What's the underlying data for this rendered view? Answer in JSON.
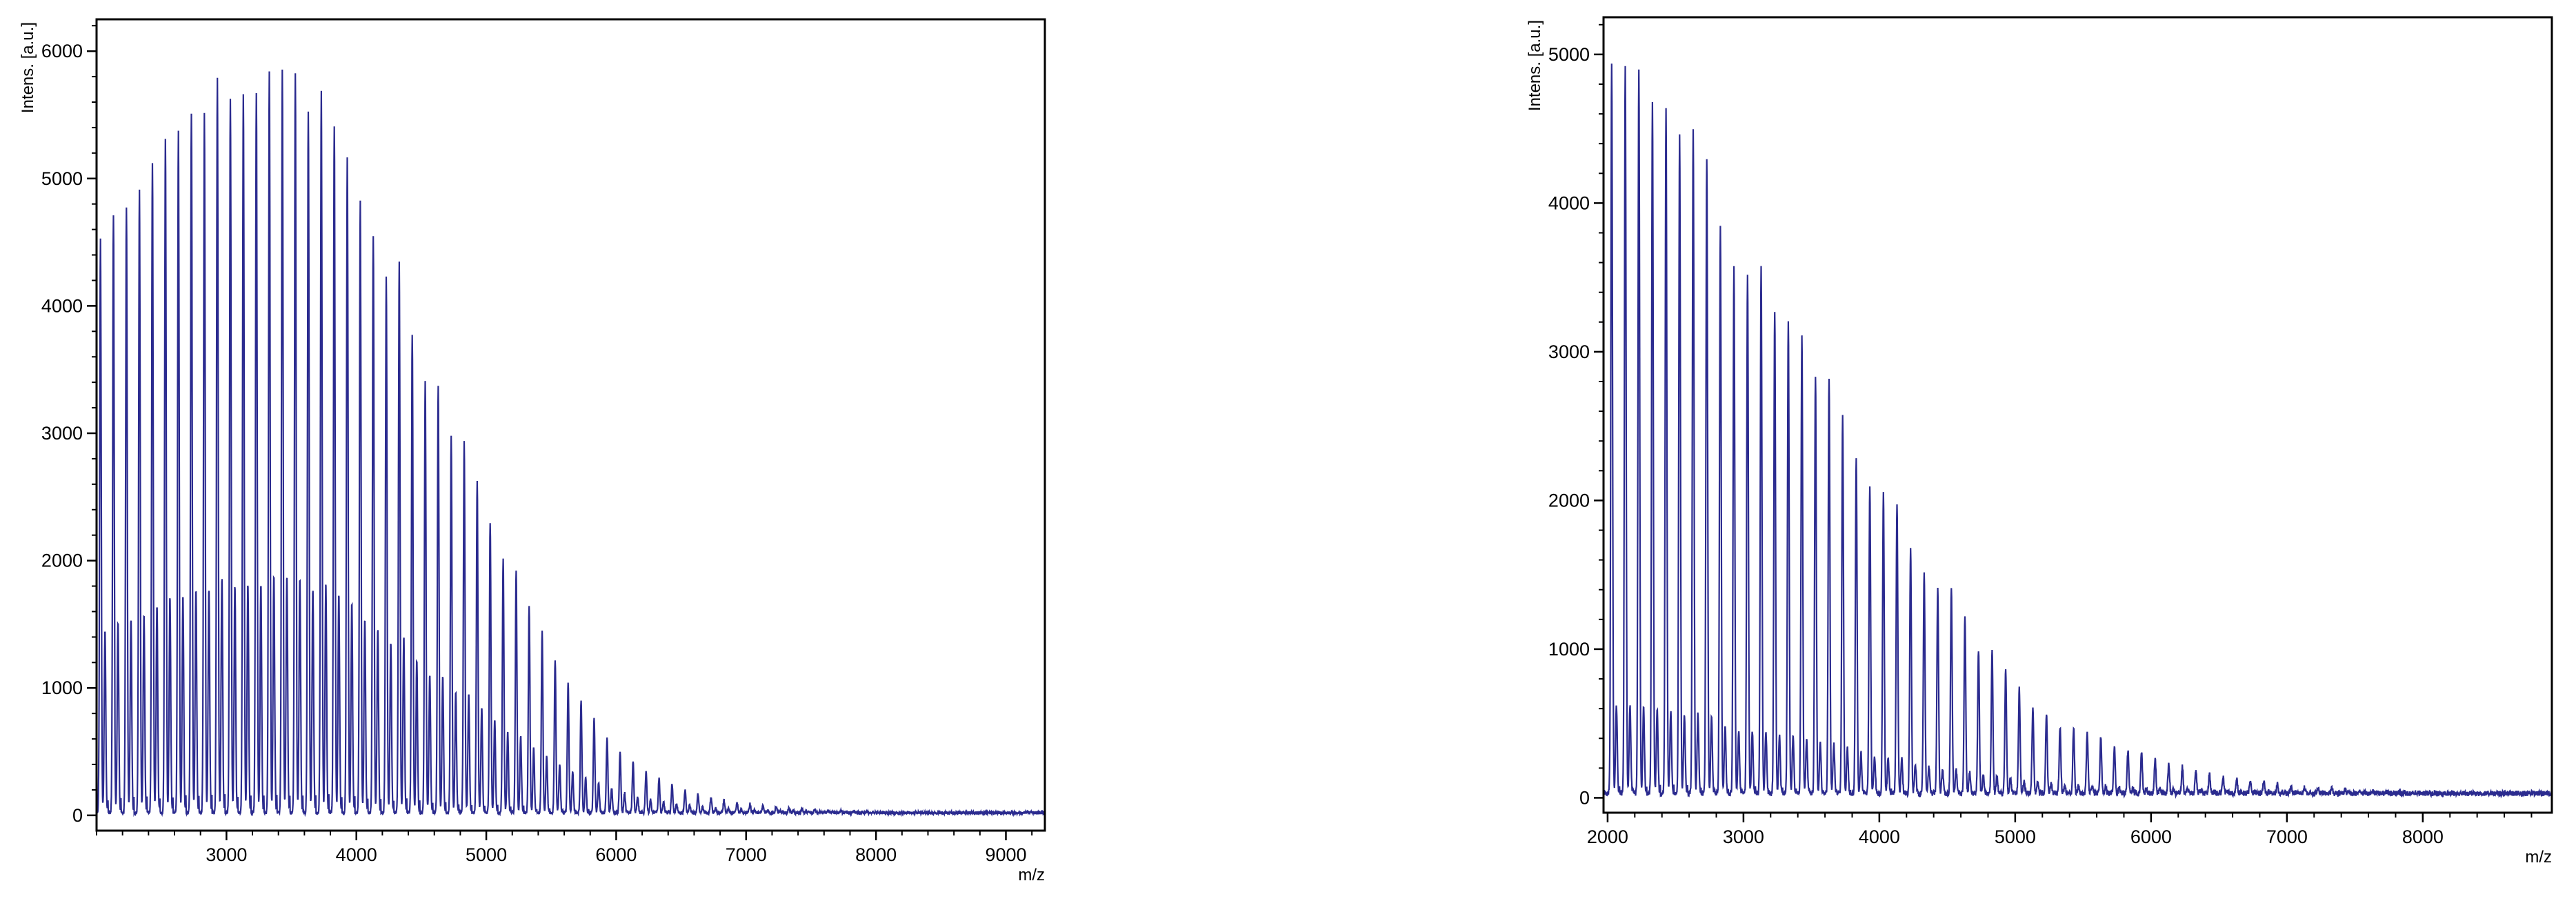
{
  "colors": {
    "trace": "#2b2b8f",
    "frame": "#000000",
    "background": "#ffffff"
  },
  "chart_data": [
    {
      "type": "line",
      "ylabel": "Intens. [a.u.]",
      "xlabel": "m/z",
      "xlim": [
        2000,
        9300
      ],
      "ylim": [
        -120,
        6250
      ],
      "xticks": [
        3000,
        4000,
        5000,
        6000,
        7000,
        8000,
        9000
      ],
      "yticks": [
        0,
        1000,
        2000,
        3000,
        4000,
        5000,
        6000
      ],
      "grid": false,
      "series": [
        {
          "peak_spacing": 100,
          "first_peak": 2030,
          "peaks": [
            {
              "x": 2030,
              "y": 4500
            },
            {
              "x": 2130,
              "y": 4700
            },
            {
              "x": 2230,
              "y": 4750
            },
            {
              "x": 2330,
              "y": 4900
            },
            {
              "x": 2430,
              "y": 5100
            },
            {
              "x": 2530,
              "y": 5300
            },
            {
              "x": 2630,
              "y": 5350
            },
            {
              "x": 2730,
              "y": 5500
            },
            {
              "x": 2830,
              "y": 5500
            },
            {
              "x": 2930,
              "y": 5780
            },
            {
              "x": 3030,
              "y": 5600
            },
            {
              "x": 3130,
              "y": 5650
            },
            {
              "x": 3230,
              "y": 5650
            },
            {
              "x": 3330,
              "y": 5830
            },
            {
              "x": 3430,
              "y": 5840
            },
            {
              "x": 3530,
              "y": 5800
            },
            {
              "x": 3630,
              "y": 5500
            },
            {
              "x": 3730,
              "y": 5660
            },
            {
              "x": 3830,
              "y": 5400
            },
            {
              "x": 3930,
              "y": 5150
            },
            {
              "x": 4030,
              "y": 4800
            },
            {
              "x": 4130,
              "y": 4520
            },
            {
              "x": 4230,
              "y": 4200
            },
            {
              "x": 4330,
              "y": 4330
            },
            {
              "x": 4430,
              "y": 3750
            },
            {
              "x": 4530,
              "y": 3400
            },
            {
              "x": 4630,
              "y": 3350
            },
            {
              "x": 4730,
              "y": 2950
            },
            {
              "x": 4830,
              "y": 2920
            },
            {
              "x": 4930,
              "y": 2600
            },
            {
              "x": 5030,
              "y": 2280
            },
            {
              "x": 5130,
              "y": 2000
            },
            {
              "x": 5230,
              "y": 1890
            },
            {
              "x": 5330,
              "y": 1620
            },
            {
              "x": 5430,
              "y": 1420
            },
            {
              "x": 5530,
              "y": 1200
            },
            {
              "x": 5630,
              "y": 1020
            },
            {
              "x": 5730,
              "y": 880
            },
            {
              "x": 5830,
              "y": 750
            },
            {
              "x": 5930,
              "y": 600
            },
            {
              "x": 6030,
              "y": 480
            },
            {
              "x": 6130,
              "y": 400
            },
            {
              "x": 6230,
              "y": 320
            },
            {
              "x": 6330,
              "y": 270
            },
            {
              "x": 6430,
              "y": 220
            },
            {
              "x": 6530,
              "y": 180
            },
            {
              "x": 6630,
              "y": 150
            },
            {
              "x": 6730,
              "y": 120
            },
            {
              "x": 6830,
              "y": 100
            },
            {
              "x": 6930,
              "y": 80
            },
            {
              "x": 7030,
              "y": 70
            },
            {
              "x": 7130,
              "y": 60
            },
            {
              "x": 7230,
              "y": 50
            },
            {
              "x": 7330,
              "y": 40
            },
            {
              "x": 7430,
              "y": 30
            },
            {
              "x": 7530,
              "y": 25
            },
            {
              "x": 7630,
              "y": 20
            },
            {
              "x": 7730,
              "y": 15
            },
            {
              "x": 7830,
              "y": 12
            },
            {
              "x": 7930,
              "y": 10
            }
          ],
          "satellite_fraction": 0.32,
          "baseline": 20
        }
      ]
    },
    {
      "type": "line",
      "ylabel": "Intens. [a.u.]",
      "xlabel": "m/z",
      "xlim": [
        1970,
        8950
      ],
      "ylim": [
        -100,
        5250
      ],
      "xticks": [
        2000,
        3000,
        4000,
        5000,
        6000,
        7000,
        8000
      ],
      "yticks": [
        0,
        1000,
        2000,
        3000,
        4000,
        5000
      ],
      "grid": false,
      "series": [
        {
          "peak_spacing": 100,
          "first_peak": 2030,
          "peaks": [
            {
              "x": 2030,
              "y": 4920
            },
            {
              "x": 2130,
              "y": 4900
            },
            {
              "x": 2230,
              "y": 4880
            },
            {
              "x": 2330,
              "y": 4650
            },
            {
              "x": 2430,
              "y": 4600
            },
            {
              "x": 2530,
              "y": 4430
            },
            {
              "x": 2630,
              "y": 4450
            },
            {
              "x": 2730,
              "y": 4280
            },
            {
              "x": 2830,
              "y": 3800
            },
            {
              "x": 2930,
              "y": 3530
            },
            {
              "x": 3030,
              "y": 3500
            },
            {
              "x": 3130,
              "y": 3540
            },
            {
              "x": 3230,
              "y": 3250
            },
            {
              "x": 3330,
              "y": 3170
            },
            {
              "x": 3430,
              "y": 3080
            },
            {
              "x": 3530,
              "y": 2820
            },
            {
              "x": 3630,
              "y": 2800
            },
            {
              "x": 3730,
              "y": 2530
            },
            {
              "x": 3830,
              "y": 2270
            },
            {
              "x": 3930,
              "y": 2050
            },
            {
              "x": 4030,
              "y": 2020
            },
            {
              "x": 4130,
              "y": 1960
            },
            {
              "x": 4230,
              "y": 1640
            },
            {
              "x": 4330,
              "y": 1480
            },
            {
              "x": 4430,
              "y": 1380
            },
            {
              "x": 4530,
              "y": 1380
            },
            {
              "x": 4630,
              "y": 1180
            },
            {
              "x": 4730,
              "y": 970
            },
            {
              "x": 4830,
              "y": 950
            },
            {
              "x": 4930,
              "y": 830
            },
            {
              "x": 5030,
              "y": 700
            },
            {
              "x": 5130,
              "y": 580
            },
            {
              "x": 5230,
              "y": 540
            },
            {
              "x": 5330,
              "y": 450
            },
            {
              "x": 5430,
              "y": 440
            },
            {
              "x": 5530,
              "y": 410
            },
            {
              "x": 5630,
              "y": 380
            },
            {
              "x": 5730,
              "y": 320
            },
            {
              "x": 5830,
              "y": 290
            },
            {
              "x": 5930,
              "y": 280
            },
            {
              "x": 6030,
              "y": 230
            },
            {
              "x": 6130,
              "y": 200
            },
            {
              "x": 6230,
              "y": 180
            },
            {
              "x": 6330,
              "y": 150
            },
            {
              "x": 6430,
              "y": 130
            },
            {
              "x": 6530,
              "y": 110
            },
            {
              "x": 6630,
              "y": 100
            },
            {
              "x": 6730,
              "y": 90
            },
            {
              "x": 6830,
              "y": 80
            },
            {
              "x": 6930,
              "y": 60
            },
            {
              "x": 7030,
              "y": 50
            },
            {
              "x": 7130,
              "y": 40
            },
            {
              "x": 7230,
              "y": 35
            },
            {
              "x": 7330,
              "y": 30
            },
            {
              "x": 7430,
              "y": 25
            },
            {
              "x": 7530,
              "y": 20
            },
            {
              "x": 7630,
              "y": 15
            },
            {
              "x": 7730,
              "y": 12
            },
            {
              "x": 7830,
              "y": 10
            },
            {
              "x": 7930,
              "y": 8
            }
          ],
          "satellite_fraction": 0.12,
          "baseline": 30
        }
      ]
    }
  ]
}
